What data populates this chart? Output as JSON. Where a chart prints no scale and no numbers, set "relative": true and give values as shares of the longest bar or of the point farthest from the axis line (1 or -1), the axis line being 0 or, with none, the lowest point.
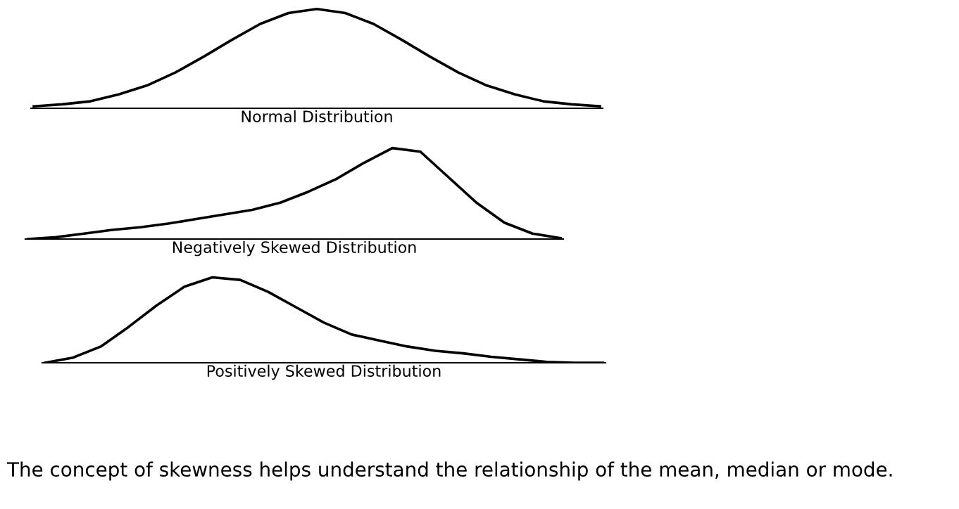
{
  "chart_data": [
    {
      "type": "line",
      "relative": true,
      "xlabel": "Normal Distribution",
      "color": "#000000",
      "categories": [
        null,
        null,
        null,
        null,
        null,
        null,
        null,
        null,
        null,
        null,
        null,
        null,
        null,
        null,
        null,
        null,
        null,
        null,
        null,
        null,
        null
      ],
      "values": [
        0.02,
        0.04,
        0.07,
        0.14,
        0.23,
        0.36,
        0.52,
        0.69,
        0.85,
        0.96,
        1,
        0.96,
        0.85,
        0.69,
        0.52,
        0.36,
        0.23,
        0.14,
        0.07,
        0.04,
        0.02
      ]
    },
    {
      "type": "line",
      "relative": true,
      "xlabel": "Negatively Skewed Distribution",
      "color": "#000000",
      "categories": [
        null,
        null,
        null,
        null,
        null,
        null,
        null,
        null,
        null,
        null,
        null,
        null,
        null,
        null,
        null,
        null,
        null,
        null,
        null,
        null
      ],
      "values": [
        0,
        0.02,
        0.06,
        0.1,
        0.13,
        0.17,
        0.22,
        0.27,
        0.32,
        0.4,
        0.52,
        0.66,
        0.84,
        1,
        0.96,
        0.68,
        0.4,
        0.18,
        0.06,
        0.01
      ]
    },
    {
      "type": "line",
      "relative": true,
      "xlabel": "Positively Skewed Distribution",
      "color": "#000000",
      "categories": [
        null,
        null,
        null,
        null,
        null,
        null,
        null,
        null,
        null,
        null,
        null,
        null,
        null,
        null,
        null,
        null,
        null,
        null,
        null,
        null,
        null
      ],
      "values": [
        0,
        0.06,
        0.19,
        0.42,
        0.67,
        0.89,
        1,
        0.97,
        0.83,
        0.65,
        0.47,
        0.33,
        0.26,
        0.19,
        0.14,
        0.11,
        0.07,
        0.04,
        0.01,
        0,
        0
      ],
      "annotations": [
        "The concept of skewness helps understand the relationship of the mean, median or mode."
      ]
    }
  ]
}
